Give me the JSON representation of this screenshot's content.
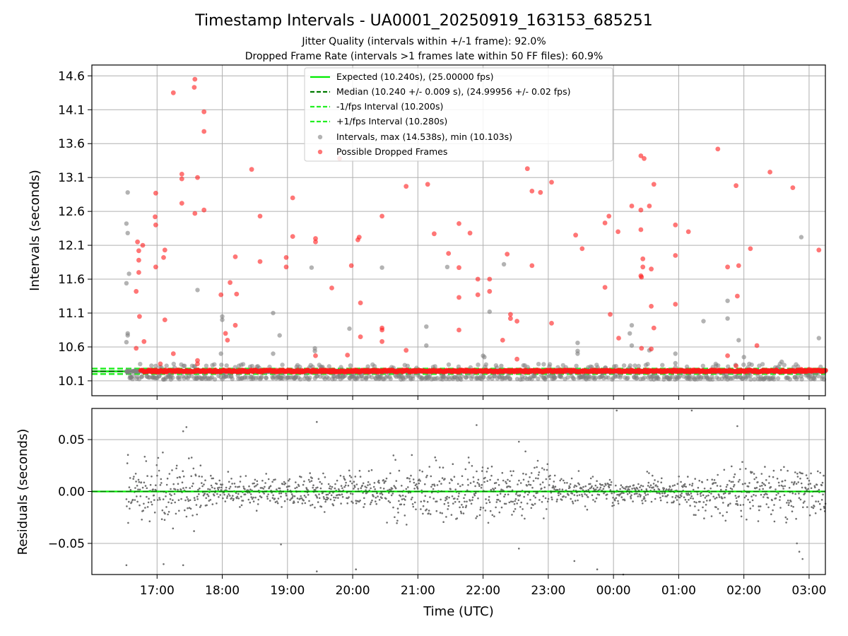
{
  "title": "Timestamp Intervals - UA0001_20250919_163153_685251",
  "subtitle_1": "Jitter Quality (intervals within +/-1 frame): 92.0%",
  "subtitle_2": "Dropped Frame Rate (intervals >1 frames late within 50 FF files): 60.9%",
  "colors": {
    "expected": "#00ee00",
    "median": "#007a00",
    "limits": "#22ee22",
    "intervals": "#808080",
    "dropped": "#ff1a1a",
    "residuals": "#6e6e6e"
  },
  "chart_data": [
    {
      "type": "scatter",
      "panel": "top",
      "ylabel": "Intervals (seconds)",
      "xlabel": "",
      "x_unit": "hours since 00:00 UTC on first day",
      "xlim": [
        16.0,
        27.25
      ],
      "ylim": [
        9.88,
        14.76
      ],
      "yticks": [
        10.1,
        10.6,
        11.1,
        11.6,
        12.1,
        12.6,
        13.1,
        13.6,
        14.1,
        14.6
      ],
      "ytick_labels": [
        "10.1",
        "10.6",
        "11.1",
        "11.6",
        "12.1",
        "12.6",
        "13.1",
        "13.6",
        "14.1",
        "14.6"
      ],
      "grid": true,
      "legend_position": "upper-center",
      "legend": [
        {
          "label": "Expected (10.240s), (25.00000 fps)",
          "style": "solid",
          "color_key": "expected"
        },
        {
          "label": "Median (10.240 +/- 0.009 s), (24.99956 +/- 0.02 fps)",
          "style": "dashed",
          "color_key": "median"
        },
        {
          "label": "-1/fps Interval (10.200s)",
          "style": "dashed",
          "color_key": "limits"
        },
        {
          "label": "+1/fps Interval (10.280s)",
          "style": "dashed",
          "color_key": "limits"
        },
        {
          "label": "Intervals, max (14.538s), min (10.103s)",
          "style": "marker",
          "color_key": "intervals"
        },
        {
          "label": "Possible Dropped Frames",
          "style": "marker",
          "color_key": "dropped"
        }
      ],
      "lines": {
        "expected": 10.24,
        "median": 10.24,
        "minus_1fps": 10.2,
        "plus_1fps": 10.28
      },
      "x_start": 16.53,
      "interval_count_baseline": 1480,
      "series": [
        {
          "name": "Intervals (gray, non-dropped outliers)",
          "points": [
            [
              16.55,
              12.88
            ],
            [
              16.53,
              12.42
            ],
            [
              16.55,
              12.28
            ],
            [
              16.53,
              11.54
            ],
            [
              16.57,
              11.68
            ],
            [
              16.55,
              10.8
            ],
            [
              16.55,
              10.77
            ],
            [
              16.53,
              10.67
            ],
            [
              16.6,
              10.15
            ],
            [
              17.62,
              11.44
            ],
            [
              18.0,
              11.05
            ],
            [
              18.0,
              11.0
            ],
            [
              17.98,
              10.5
            ],
            [
              18.78,
              11.1
            ],
            [
              18.88,
              10.77
            ],
            [
              18.78,
              10.5
            ],
            [
              19.37,
              11.77
            ],
            [
              19.42,
              10.58
            ],
            [
              19.42,
              10.54
            ],
            [
              19.95,
              10.87
            ],
            [
              20.45,
              11.77
            ],
            [
              21.13,
              10.9
            ],
            [
              21.13,
              10.62
            ],
            [
              21.45,
              11.78
            ],
            [
              22.0,
              10.47
            ],
            [
              22.1,
              11.12
            ],
            [
              22.02,
              10.45
            ],
            [
              22.28,
              10.32
            ],
            [
              22.32,
              11.82
            ],
            [
              23.45,
              10.66
            ],
            [
              23.45,
              10.54
            ],
            [
              23.45,
              10.5
            ],
            [
              24.28,
              10.92
            ],
            [
              24.25,
              10.8
            ],
            [
              24.28,
              10.62
            ],
            [
              24.95,
              10.5
            ],
            [
              24.95,
              10.36
            ],
            [
              25.38,
              10.98
            ],
            [
              25.75,
              11.28
            ],
            [
              25.75,
              11.02
            ],
            [
              25.92,
              10.7
            ],
            [
              26.0,
              10.45
            ],
            [
              26.58,
              10.38
            ],
            [
              26.88,
              12.22
            ],
            [
              26.88,
              10.17
            ],
            [
              27.15,
              10.73
            ],
            [
              24.55,
              10.55
            ]
          ]
        },
        {
          "name": "Possible Dropped Frames",
          "points": [
            [
              16.7,
              12.15
            ],
            [
              16.78,
              12.1
            ],
            [
              16.72,
              12.02
            ],
            [
              16.72,
              11.88
            ],
            [
              16.72,
              11.7
            ],
            [
              16.68,
              11.42
            ],
            [
              16.73,
              11.05
            ],
            [
              16.68,
              10.58
            ],
            [
              16.8,
              10.68
            ],
            [
              16.98,
              12.87
            ],
            [
              16.97,
              12.52
            ],
            [
              16.98,
              12.4
            ],
            [
              17.12,
              12.03
            ],
            [
              17.1,
              11.92
            ],
            [
              16.98,
              11.78
            ],
            [
              17.12,
              11.0
            ],
            [
              17.05,
              10.35
            ],
            [
              17.25,
              14.35
            ],
            [
              17.25,
              10.5
            ],
            [
              17.38,
              13.15
            ],
            [
              17.38,
              13.08
            ],
            [
              17.38,
              12.72
            ],
            [
              17.58,
              14.55
            ],
            [
              17.57,
              14.43
            ],
            [
              17.72,
              14.07
            ],
            [
              17.72,
              13.78
            ],
            [
              17.62,
              13.1
            ],
            [
              17.72,
              12.62
            ],
            [
              17.58,
              12.57
            ],
            [
              17.62,
              10.4
            ],
            [
              17.62,
              10.35
            ],
            [
              17.98,
              11.37
            ],
            [
              18.05,
              10.8
            ],
            [
              18.12,
              11.55
            ],
            [
              18.2,
              11.93
            ],
            [
              18.22,
              11.38
            ],
            [
              18.2,
              10.92
            ],
            [
              18.08,
              10.7
            ],
            [
              18.45,
              13.22
            ],
            [
              18.58,
              12.53
            ],
            [
              18.58,
              11.86
            ],
            [
              18.98,
              11.92
            ],
            [
              18.98,
              11.78
            ],
            [
              19.08,
              12.8
            ],
            [
              19.08,
              12.23
            ],
            [
              19.43,
              12.2
            ],
            [
              19.43,
              12.15
            ],
            [
              19.43,
              10.47
            ],
            [
              19.68,
              11.47
            ],
            [
              19.8,
              13.38
            ],
            [
              19.92,
              10.48
            ],
            [
              19.98,
              11.8
            ],
            [
              20.1,
              12.22
            ],
            [
              20.08,
              12.18
            ],
            [
              20.12,
              11.25
            ],
            [
              20.12,
              10.75
            ],
            [
              20.45,
              12.53
            ],
            [
              20.45,
              10.88
            ],
            [
              20.45,
              10.85
            ],
            [
              20.45,
              10.68
            ],
            [
              20.82,
              12.97
            ],
            [
              20.82,
              10.55
            ],
            [
              21.15,
              13.0
            ],
            [
              21.25,
              12.27
            ],
            [
              21.47,
              11.98
            ],
            [
              21.63,
              12.42
            ],
            [
              21.63,
              11.77
            ],
            [
              21.63,
              11.33
            ],
            [
              21.63,
              10.85
            ],
            [
              21.8,
              12.28
            ],
            [
              21.92,
              11.6
            ],
            [
              21.92,
              11.37
            ],
            [
              22.1,
              11.6
            ],
            [
              22.1,
              11.42
            ],
            [
              22.3,
              10.7
            ],
            [
              22.37,
              11.97
            ],
            [
              22.42,
              11.08
            ],
            [
              22.42,
              11.02
            ],
            [
              22.52,
              10.98
            ],
            [
              22.52,
              10.42
            ],
            [
              22.68,
              13.23
            ],
            [
              22.75,
              12.9
            ],
            [
              22.75,
              11.8
            ],
            [
              22.88,
              12.88
            ],
            [
              23.05,
              13.03
            ],
            [
              23.05,
              10.95
            ],
            [
              23.42,
              12.25
            ],
            [
              23.52,
              12.05
            ],
            [
              23.87,
              12.43
            ],
            [
              23.87,
              11.48
            ],
            [
              23.93,
              12.53
            ],
            [
              23.95,
              11.08
            ],
            [
              24.07,
              12.3
            ],
            [
              24.08,
              10.73
            ],
            [
              24.28,
              12.68
            ],
            [
              24.42,
              13.42
            ],
            [
              24.47,
              13.38
            ],
            [
              24.42,
              12.33
            ],
            [
              24.42,
              12.62
            ],
            [
              24.45,
              11.9
            ],
            [
              24.45,
              11.78
            ],
            [
              24.42,
              11.65
            ],
            [
              24.43,
              11.63
            ],
            [
              24.43,
              10.58
            ],
            [
              24.55,
              12.68
            ],
            [
              24.58,
              11.75
            ],
            [
              24.58,
              11.2
            ],
            [
              24.62,
              13.0
            ],
            [
              24.62,
              10.88
            ],
            [
              24.58,
              10.57
            ],
            [
              24.95,
              12.4
            ],
            [
              24.95,
              11.95
            ],
            [
              24.95,
              11.23
            ],
            [
              25.15,
              12.3
            ],
            [
              25.6,
              13.52
            ],
            [
              25.75,
              11.78
            ],
            [
              25.75,
              10.47
            ],
            [
              25.88,
              12.98
            ],
            [
              25.9,
              11.35
            ],
            [
              25.92,
              11.8
            ],
            [
              26.1,
              12.05
            ],
            [
              26.2,
              10.62
            ],
            [
              26.4,
              13.18
            ],
            [
              26.75,
              12.95
            ],
            [
              27.15,
              12.03
            ],
            [
              26.88,
              10.27
            ],
            [
              25.88,
              10.32
            ],
            [
              27.0,
              10.27
            ]
          ]
        }
      ]
    },
    {
      "type": "scatter",
      "panel": "bottom",
      "ylabel": "Residuals (seconds)",
      "xlabel": "Time (UTC)",
      "xlim": [
        16.0,
        27.25
      ],
      "ylim": [
        -0.08,
        0.08
      ],
      "yticks": [
        -0.05,
        0.0,
        0.05
      ],
      "ytick_labels": [
        "−0.05",
        "0.00",
        "0.05"
      ],
      "xticks": [
        17,
        18,
        19,
        20,
        21,
        22,
        23,
        24,
        25,
        26,
        27
      ],
      "xtick_labels": [
        "17:00",
        "18:00",
        "19:00",
        "20:00",
        "21:00",
        "22:00",
        "23:00",
        "00:00",
        "01:00",
        "02:00",
        "03:00"
      ],
      "grid": true,
      "zero_line": 0.0,
      "series": [
        {
          "name": "Residuals (notable outliers)",
          "points": [
            [
              16.53,
              -0.071
            ],
            [
              17.45,
              0.062
            ],
            [
              17.4,
              0.058
            ],
            [
              17.4,
              -0.071
            ],
            [
              17.1,
              -0.07
            ],
            [
              19.45,
              0.067
            ],
            [
              21.9,
              0.064
            ],
            [
              20.05,
              -0.075
            ],
            [
              19.45,
              -0.077
            ],
            [
              24.05,
              0.078
            ],
            [
              25.9,
              0.063
            ],
            [
              22.55,
              0.048
            ],
            [
              22.55,
              -0.055
            ],
            [
              18.9,
              -0.051
            ],
            [
              23.4,
              -0.067
            ],
            [
              23.75,
              -0.075
            ],
            [
              26.85,
              -0.058
            ],
            [
              24.15,
              -0.08
            ],
            [
              26.9,
              -0.065
            ],
            [
              25.2,
              0.078
            ]
          ]
        }
      ]
    }
  ]
}
